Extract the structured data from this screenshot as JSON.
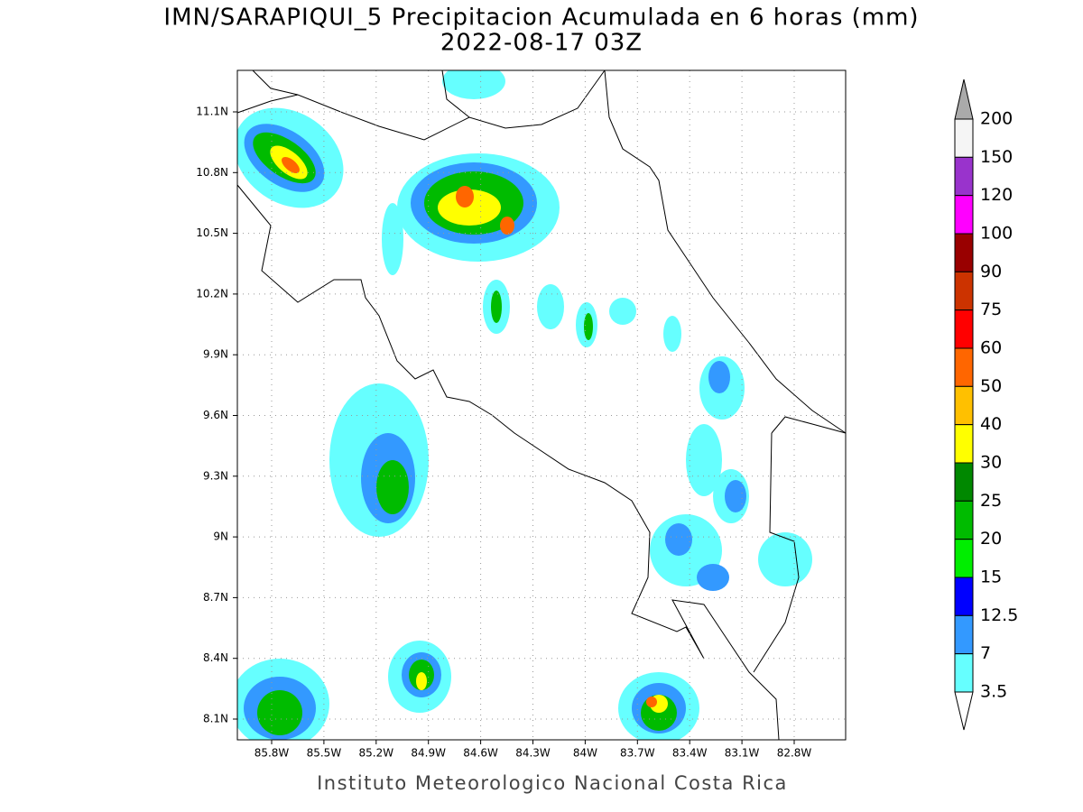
{
  "title": [
    "IMN/SARAPIQUI_5 Precipitacion Acumulada en 6 horas (mm)",
    "2022-08-17 03Z"
  ],
  "lat_labels": [
    "11.1N",
    "10.8N",
    "10.5N",
    "10.2N",
    "9.9N",
    "9.6N",
    "9.3N",
    "9N",
    "8.7N",
    "8.4N",
    "8.1N"
  ],
  "lon_labels": [
    "85.8W",
    "85.5W",
    "85.2W",
    "84.9W",
    "84.6W",
    "84.3W",
    "84W",
    "83.7W",
    "83.4W",
    "83.1W",
    "82.8W"
  ],
  "colorbar": {
    "labels": [
      "200",
      "150",
      "120",
      "100",
      "90",
      "75",
      "60",
      "50",
      "40",
      "30",
      "25",
      "20",
      "15",
      "12.5",
      "7",
      "3.5"
    ],
    "colors": [
      "#f5f5f5",
      "#9933cc",
      "#ff00ff",
      "#990000",
      "#cc3300",
      "#ff0000",
      "#ff6600",
      "#ffc000",
      "#ffff00",
      "#008800",
      "#00bb00",
      "#00ee00",
      "#0000ff",
      "#3399ff",
      "#66ffff"
    ]
  },
  "footer": "Instituto Meteorologico Nacional Costa Rica"
}
